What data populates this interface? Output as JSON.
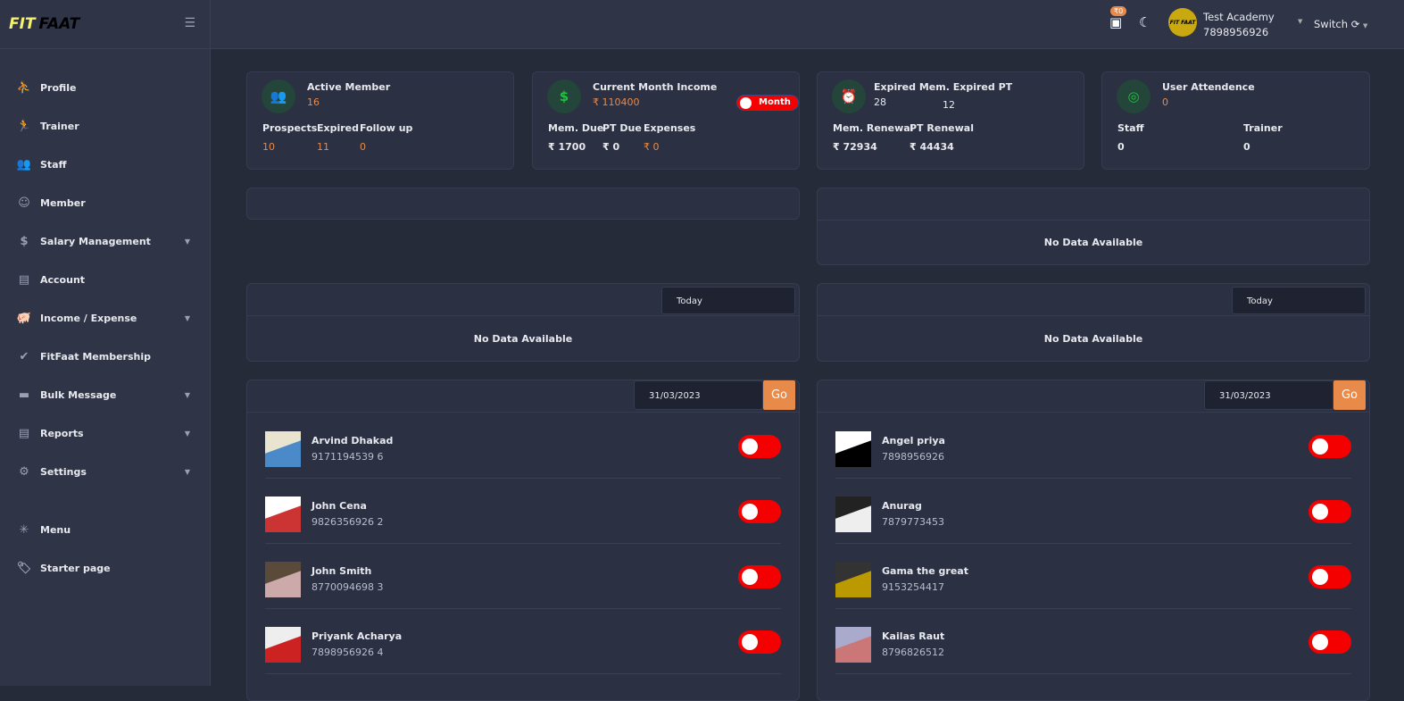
{
  "brand": {
    "logo_text_1": "FIT",
    "logo_text_2": "FAAT"
  },
  "sidebar": {
    "items": [
      {
        "label": "Profile",
        "icon": "yoga-icon"
      },
      {
        "label": "Trainer",
        "icon": "trainer-icon"
      },
      {
        "label": "Staff",
        "icon": "staff-icon"
      },
      {
        "label": "Member",
        "icon": "smile-icon"
      },
      {
        "label": "Salary Management",
        "icon": "dollar-icon",
        "dropdown": true
      },
      {
        "label": "Account",
        "icon": "file-icon"
      },
      {
        "label": "Income / Expense",
        "icon": "piggy-bank-icon",
        "dropdown": true
      },
      {
        "label": "FitFaat Membership",
        "icon": "badge-check-icon"
      },
      {
        "label": "Bulk Message",
        "icon": "message-icon",
        "dropdown": true
      },
      {
        "label": "Reports",
        "icon": "file-icon",
        "dropdown": true
      },
      {
        "label": "Settings",
        "icon": "gear-icon",
        "dropdown": true
      }
    ],
    "extra": [
      {
        "label": "Menu",
        "icon": "snowflake-icon"
      },
      {
        "label": "Starter page",
        "icon": "tag-icon"
      }
    ]
  },
  "topbar": {
    "wallet_badge": "₹0",
    "academy": "Test Academy",
    "phone": "7898956926",
    "switch_label": "Switch",
    "avatar_text": "FIT FAAT"
  },
  "stats": {
    "active": {
      "title": "Active Member",
      "value": "16",
      "l1": "Prospects",
      "v1": "10",
      "l2": "Expired",
      "v2": "11",
      "l3": "Follow up",
      "v3": "0"
    },
    "income": {
      "title": "Current Month Income",
      "value": "₹ 110400",
      "toggle": "Month",
      "l1": "Mem. Due",
      "v1": "₹ 1700",
      "l2": "PT Due",
      "v2": "₹ 0",
      "l3": "Expenses",
      "v3": "₹ 0"
    },
    "expired": {
      "title": "Expired Mem. Expired PT",
      "v_mem": "28",
      "v_pt": "12",
      "l1": "Mem. Renewal",
      "v1": "₹ 72934",
      "l2": "PT Renewal",
      "v2": "₹ 44434"
    },
    "attendance": {
      "title": "User Attendence",
      "value": "0",
      "l1": "Staff",
      "v1": "0",
      "l2": "Trainer",
      "v2": "0"
    }
  },
  "panels": {
    "no_data": "No Data Available",
    "today": "Today",
    "date": "31/03/2023",
    "go": "Go"
  },
  "left_list": [
    {
      "name": "Arvind Dhakad",
      "phone": "9171194539 6"
    },
    {
      "name": "John Cena",
      "phone": "9826356926 2"
    },
    {
      "name": "John Smith",
      "phone": "8770094698 3"
    },
    {
      "name": "Priyank Acharya",
      "phone": "7898956926 4"
    }
  ],
  "right_list": [
    {
      "name": "Angel priya",
      "phone": "7898956926"
    },
    {
      "name": "Anurag",
      "phone": "7879773453"
    },
    {
      "name": "Gama the great",
      "phone": "9153254417"
    },
    {
      "name": "Kailas Raut",
      "phone": "8796826512"
    }
  ],
  "colors": {
    "accent": "#e88a4a",
    "toggle": "#f40000",
    "icon_green": "#1fc23c"
  }
}
